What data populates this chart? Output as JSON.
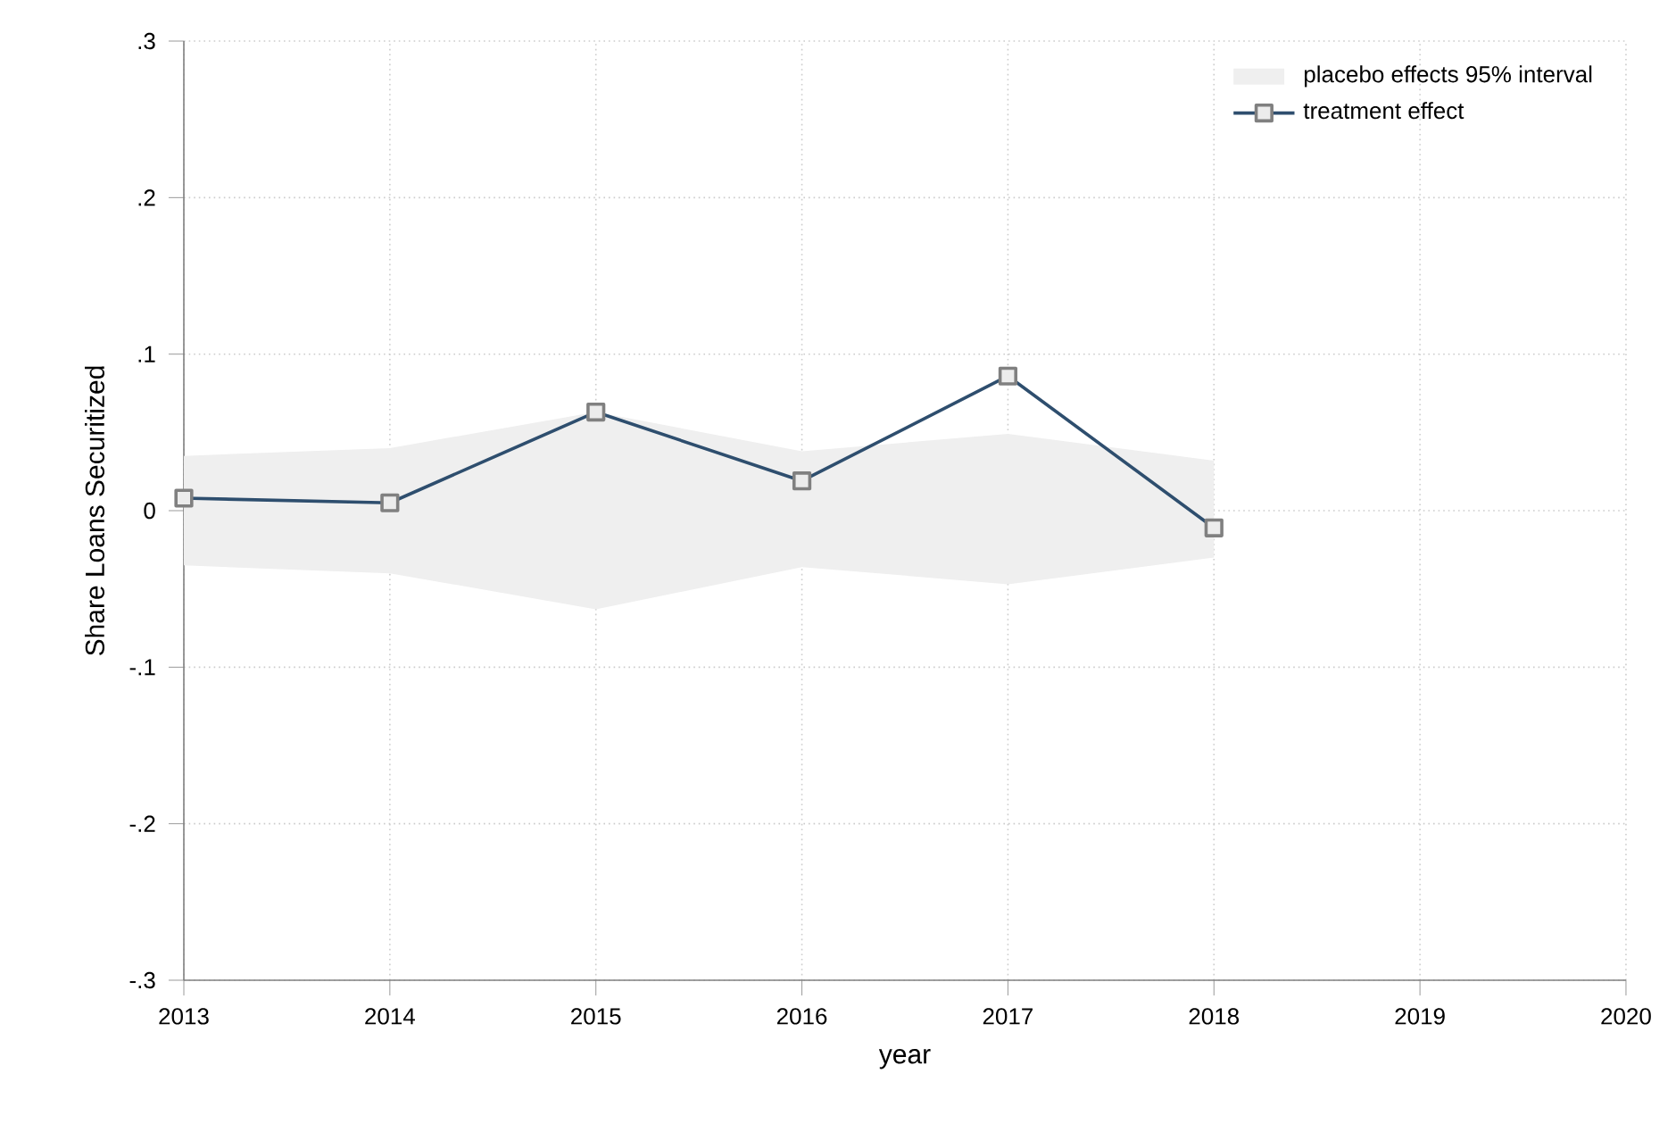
{
  "chart_data": {
    "type": "line",
    "xlabel": "year",
    "ylabel": "Share Loans Securitized",
    "x": [
      2013,
      2014,
      2015,
      2016,
      2017,
      2018
    ],
    "series": [
      {
        "name": "placebo effects 95% interval",
        "color": "#efefef",
        "values": [
          null,
          null,
          null,
          null,
          null,
          null
        ],
        "lower": [
          -0.035,
          -0.04,
          -0.063,
          -0.036,
          -0.047,
          -0.03
        ],
        "upper": [
          0.035,
          0.04,
          0.063,
          0.038,
          0.049,
          0.032
        ]
      },
      {
        "name": "treatment effect",
        "color": "#2e4e6e",
        "values": [
          0.008,
          0.005,
          0.063,
          0.019,
          0.086,
          -0.011
        ],
        "marker": "square"
      }
    ],
    "xlim": [
      2013,
      2020
    ],
    "xticks": [
      2013,
      2014,
      2015,
      2016,
      2017,
      2018,
      2019,
      2020
    ],
    "ylim": [
      -0.3,
      0.3
    ],
    "yticks": [
      {
        "value": -0.3,
        "label": "-.3"
      },
      {
        "value": -0.2,
        "label": "-.2"
      },
      {
        "value": -0.1,
        "label": "-.1"
      },
      0,
      {
        "value": 0.1,
        "label": ".1"
      },
      {
        "value": 0.2,
        "label": ".2"
      },
      {
        "value": 0.3,
        "label": ".3"
      }
    ],
    "grid": true,
    "legend": "top right"
  }
}
